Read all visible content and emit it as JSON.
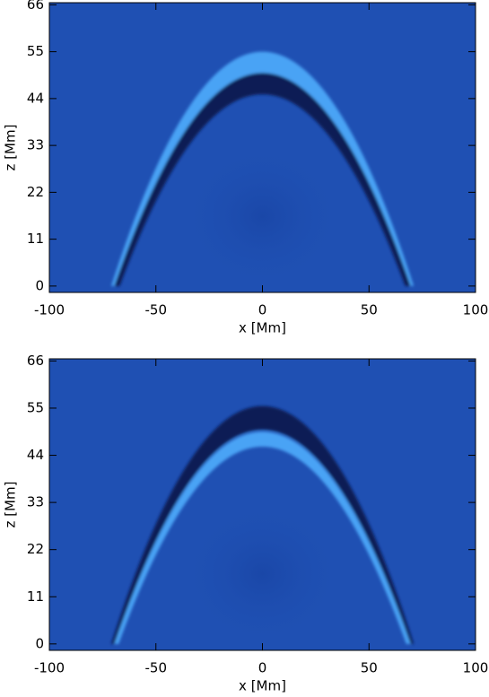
{
  "chart_data": [
    {
      "type": "image",
      "xlabel": "x [Mm]",
      "ylabel": "z [Mm]",
      "xlim": [
        -100,
        100
      ],
      "ylim": [
        -1.5,
        66.5
      ],
      "xticks": [
        -100,
        -50,
        0,
        50,
        100
      ],
      "yticks": [
        0,
        11,
        22,
        33,
        44,
        55,
        66
      ]
    },
    {
      "type": "image",
      "xlabel": "x [Mm]",
      "ylabel": "z [Mm]",
      "xlim": [
        -100,
        100
      ],
      "ylim": [
        -1.5,
        66.5
      ],
      "xticks": [
        -100,
        -50,
        0,
        50,
        100
      ],
      "yticks": [
        0,
        11,
        22,
        33,
        44,
        55,
        66
      ]
    }
  ]
}
